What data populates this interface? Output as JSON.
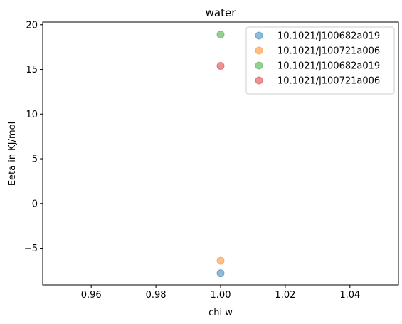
{
  "chart_data": {
    "type": "scatter",
    "title": "water",
    "xlabel": "chi w",
    "ylabel": "Eeta in KJ/mol",
    "xlim": [
      0.945,
      1.055
    ],
    "ylim": [
      -9.1,
      20.3
    ],
    "xticks": [
      0.96,
      0.98,
      1.0,
      1.02,
      1.04
    ],
    "xtick_labels": [
      "0.96",
      "0.98",
      "1.00",
      "1.02",
      "1.04"
    ],
    "yticks": [
      -5,
      0,
      5,
      10,
      15,
      20
    ],
    "ytick_labels": [
      "−5",
      "0",
      "5",
      "10",
      "15",
      "20"
    ],
    "grid": false,
    "legend_position": "top-right",
    "series": [
      {
        "name": "10.1021/j100682a019",
        "color": "#1f77b4",
        "points": [
          {
            "x": 1.0,
            "y": -7.8
          }
        ]
      },
      {
        "name": "10.1021/j100721a006",
        "color": "#ff7f0e",
        "points": [
          {
            "x": 1.0,
            "y": -6.4
          }
        ]
      },
      {
        "name": "10.1021/j100682a019",
        "color": "#2ca02c",
        "points": [
          {
            "x": 1.0,
            "y": 18.9
          }
        ]
      },
      {
        "name": "10.1021/j100721a006",
        "color": "#d62728",
        "points": [
          {
            "x": 1.0,
            "y": 15.4
          }
        ]
      }
    ]
  }
}
